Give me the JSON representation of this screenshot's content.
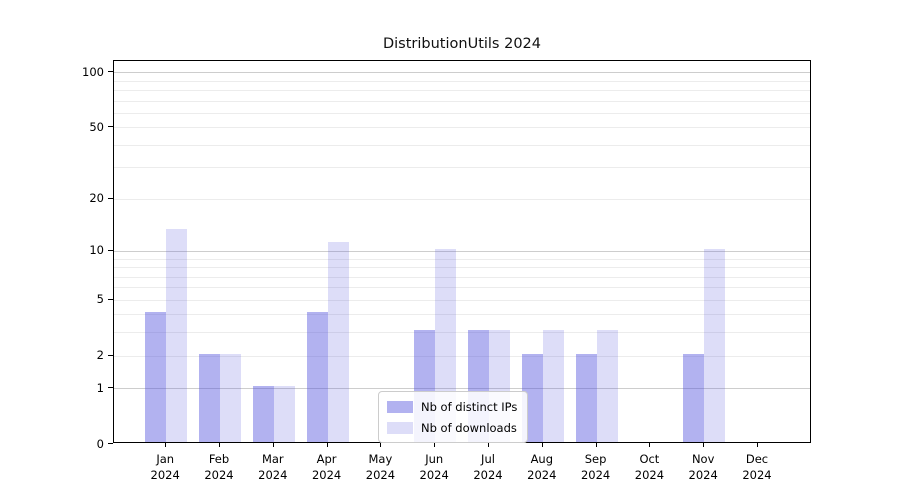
{
  "figure": {
    "title": "DistributionUtils 2024"
  },
  "chart_data": {
    "type": "bar",
    "title": "DistributionUtils 2024",
    "categories": [
      "Jan",
      "Feb",
      "Mar",
      "Apr",
      "May",
      "Jun",
      "Jul",
      "Aug",
      "Sep",
      "Oct",
      "Nov",
      "Dec"
    ],
    "category_year": "2024",
    "series": [
      {
        "name": "Nb of distinct IPs",
        "values": [
          4,
          2,
          1,
          4,
          0,
          3,
          3,
          2,
          2,
          0,
          2,
          0
        ],
        "color": "rgba(85,85,221,0.45)"
      },
      {
        "name": "Nb of downloads",
        "values": [
          13,
          2,
          1,
          11,
          0,
          10,
          3,
          3,
          3,
          0,
          10,
          0
        ],
        "color": "rgba(85,85,221,0.20)"
      }
    ],
    "xlabel": "",
    "ylabel": "",
    "yscale": "log1p",
    "ymax": 115,
    "yticks": [
      0,
      1,
      2,
      5,
      10,
      20,
      50,
      100
    ],
    "major_gridlines": [
      1,
      10,
      100
    ],
    "minor_gridlines": [
      2,
      3,
      4,
      5,
      6,
      7,
      8,
      9,
      20,
      30,
      40,
      50,
      60,
      70,
      80,
      90
    ],
    "grid": true,
    "legend_position": "lower center"
  },
  "colors": {
    "bar_distinct_ips": "rgba(85,85,221,0.45)",
    "bar_downloads": "rgba(85,85,221,0.20)",
    "grid_major": "#cdcdcd",
    "grid_minor": "#ececec",
    "spine": "#000000",
    "background": "#ffffff"
  }
}
